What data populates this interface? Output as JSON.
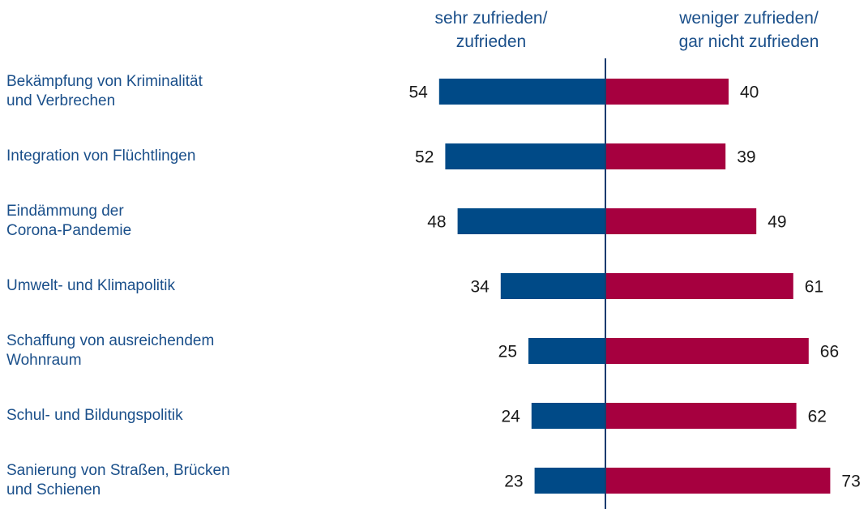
{
  "chart_data": {
    "type": "diverging-bar",
    "categories": [
      "Bekämpfung von Kriminalität\nund Verbrechen",
      "Integration von Flüchtlingen",
      "Eindämmung der\nCorona-Pandemie",
      "Umwelt- und Klimapolitik",
      "Schaffung von ausreichendem\nWohnraum",
      "Schul- und Bildungspolitik",
      "Sanierung von Straßen, Brücken\nund Schienen"
    ],
    "series": [
      {
        "name": "sehr zufrieden/\nzufrieden",
        "color": "#004a87",
        "values": [
          54,
          52,
          48,
          34,
          25,
          24,
          23
        ]
      },
      {
        "name": "weniger zufrieden/\ngar nicht zufrieden",
        "color": "#a6003f",
        "values": [
          40,
          39,
          49,
          61,
          66,
          62,
          73
        ]
      }
    ]
  }
}
